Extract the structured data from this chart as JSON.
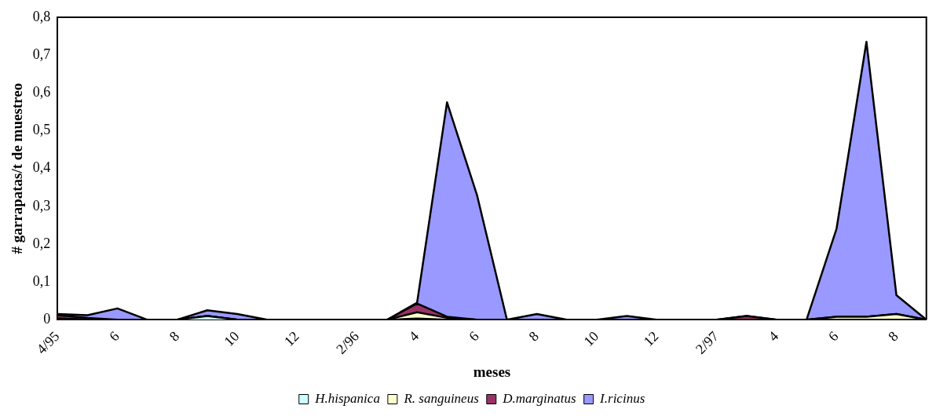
{
  "chart_data": {
    "type": "area",
    "stacked": true,
    "xlabel": "meses",
    "ylabel": "# garrapatas/t de muestreo",
    "categories": [
      "4/95",
      null,
      "6",
      null,
      "8",
      null,
      "10",
      null,
      "12",
      null,
      "2/96",
      null,
      "4",
      null,
      "6",
      null,
      "8",
      null,
      "10",
      null,
      "12",
      null,
      "2/97",
      null,
      "4",
      null,
      "6",
      null,
      "8",
      null
    ],
    "series": [
      {
        "name": "H.hispanica",
        "color": "#ccffff",
        "values": [
          0.003,
          0,
          0,
          0,
          0,
          0.01,
          0,
          0,
          0,
          0,
          0,
          0,
          0.003,
          0,
          0,
          0,
          0,
          0,
          0,
          0,
          0,
          0,
          0,
          0,
          0,
          0,
          0,
          0,
          0,
          0
        ]
      },
      {
        "name": "R. sanguineus",
        "color": "#ffffcc",
        "values": [
          0,
          0,
          0,
          0,
          0,
          0,
          0,
          0,
          0,
          0,
          0,
          0,
          0.017,
          0.005,
          0,
          0,
          0,
          0,
          0,
          0,
          0,
          0,
          0,
          0,
          0,
          0,
          0.008,
          0.008,
          0.015,
          0
        ]
      },
      {
        "name": "D.marginatus",
        "color": "#993366",
        "values": [
          0.009,
          0.005,
          0,
          0,
          0,
          0,
          0,
          0,
          0,
          0,
          0,
          0,
          0.023,
          0.003,
          0,
          0,
          0,
          0,
          0,
          0,
          0,
          0,
          0,
          0.01,
          0,
          0,
          0,
          0,
          0,
          0
        ]
      },
      {
        "name": "I.ricinus",
        "color": "#9999ff",
        "values": [
          0.003,
          0.007,
          0.03,
          0,
          0,
          0.015,
          0.015,
          0,
          0,
          0,
          0,
          0,
          0.002,
          0.567,
          0.33,
          0,
          0.015,
          0,
          0,
          0.01,
          0,
          0,
          0,
          0,
          0,
          0,
          0.232,
          0.727,
          0.05,
          0
        ]
      }
    ],
    "ylim": [
      0,
      0.8
    ],
    "yticks": [
      0,
      {
        "value": 0.1,
        "label": "0,1"
      },
      {
        "value": 0.2,
        "label": "0,2"
      },
      {
        "value": 0.3,
        "label": "0,3"
      },
      {
        "value": 0.4,
        "label": "0,4"
      },
      {
        "value": 0.5,
        "label": "0,5"
      },
      {
        "value": 0.6,
        "label": "0,6"
      },
      {
        "value": 0.7,
        "label": "0,7"
      },
      {
        "value": 0.8,
        "label": "0,8"
      }
    ],
    "grid": false,
    "legend": "bottom"
  }
}
